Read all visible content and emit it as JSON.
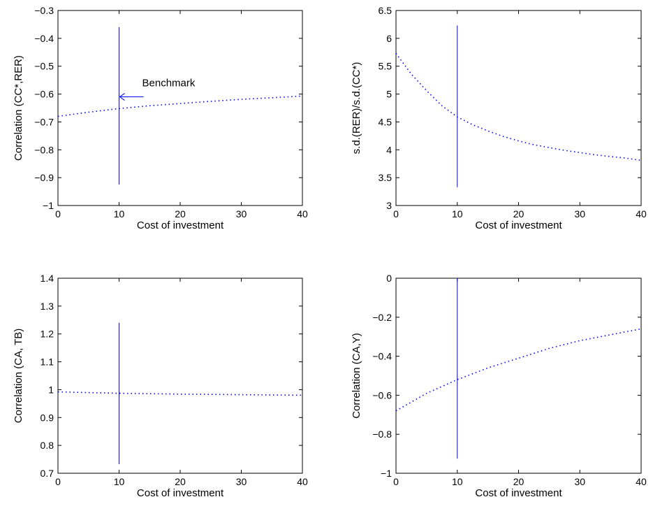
{
  "chart_data": [
    {
      "type": "line",
      "xlabel": "Cost of investment",
      "ylabel": "Correlation (CC*,RER)",
      "xlim": [
        0,
        40
      ],
      "ylim": [
        -1,
        -0.3
      ],
      "xticks": [
        "0",
        "10",
        "20",
        "30",
        "40"
      ],
      "yticks": [
        "−1",
        "−0.9",
        "−0.8",
        "−0.7",
        "−0.6",
        "−0.5",
        "−0.4",
        "−0.3"
      ],
      "series": [
        {
          "style": "dotted",
          "color": "#0000ff",
          "x": [
            0,
            5,
            10,
            15,
            20,
            25,
            30,
            35,
            40
          ],
          "y": [
            -0.68,
            -0.665,
            -0.652,
            -0.642,
            -0.634,
            -0.626,
            -0.619,
            -0.613,
            -0.607
          ]
        }
      ],
      "benchmark_line": {
        "x": 10,
        "y_from": -0.925,
        "y_to": -0.36,
        "color": "#0000ff"
      },
      "annotation": {
        "text": "Benchmark",
        "arrow_to": {
          "x": 10,
          "y": -0.61
        },
        "arrow_from": {
          "x": 14,
          "y": -0.61
        }
      }
    },
    {
      "type": "line",
      "xlabel": "Cost of investment",
      "ylabel": "s.d.(RER)/s.d.(CC*)",
      "xlim": [
        0,
        40
      ],
      "ylim": [
        3,
        6.5
      ],
      "xticks": [
        "0",
        "10",
        "20",
        "30",
        "40"
      ],
      "yticks": [
        "3",
        "3.5",
        "4",
        "4.5",
        "5",
        "5.5",
        "6",
        "6.5"
      ],
      "series": [
        {
          "style": "dotted",
          "color": "#0000ff",
          "x": [
            0,
            2.5,
            5,
            7.5,
            10,
            12.5,
            15,
            17.5,
            20,
            22.5,
            25,
            27.5,
            30,
            32.5,
            35,
            37.5,
            40
          ],
          "y": [
            5.73,
            5.36,
            5.06,
            4.79,
            4.59,
            4.45,
            4.34,
            4.24,
            4.16,
            4.09,
            4.04,
            3.99,
            3.95,
            3.91,
            3.88,
            3.85,
            3.81
          ]
        }
      ],
      "benchmark_line": {
        "x": 10,
        "y_from": 3.33,
        "y_to": 6.23,
        "color": "#0000ff"
      }
    },
    {
      "type": "line",
      "xlabel": "Cost of investment",
      "ylabel": "Correlation (CA, TB)",
      "xlim": [
        0,
        40
      ],
      "ylim": [
        0.7,
        1.4
      ],
      "xticks": [
        "0",
        "10",
        "20",
        "30",
        "40"
      ],
      "yticks": [
        "0.7",
        "0.8",
        "0.9",
        "1",
        "1.1",
        "1.2",
        "1.3",
        "1.4"
      ],
      "series": [
        {
          "style": "dotted",
          "color": "#0000ff",
          "x": [
            0,
            10,
            20,
            30,
            40
          ],
          "y": [
            0.992,
            0.987,
            0.984,
            0.982,
            0.98
          ]
        }
      ],
      "benchmark_line": {
        "x": 10,
        "y_from": 0.733,
        "y_to": 1.24,
        "color": "#0000ff"
      }
    },
    {
      "type": "line",
      "xlabel": "Cost of investment",
      "ylabel": "Correlation (CA,Y)",
      "xlim": [
        0,
        40
      ],
      "ylim": [
        -1,
        0
      ],
      "xticks": [
        "0",
        "10",
        "20",
        "30",
        "40"
      ],
      "yticks": [
        "−1",
        "−0.8",
        "−0.6",
        "−0.4",
        "−0.2",
        "0"
      ],
      "series": [
        {
          "style": "dotted",
          "color": "#0000ff",
          "x": [
            0,
            5,
            10,
            15,
            20,
            25,
            30,
            35,
            40
          ],
          "y": [
            -0.68,
            -0.59,
            -0.52,
            -0.46,
            -0.41,
            -0.36,
            -0.32,
            -0.29,
            -0.26
          ]
        }
      ],
      "benchmark_line": {
        "x": 10,
        "y_from": -0.925,
        "y_to": 0,
        "color": "#0000ff"
      }
    }
  ]
}
